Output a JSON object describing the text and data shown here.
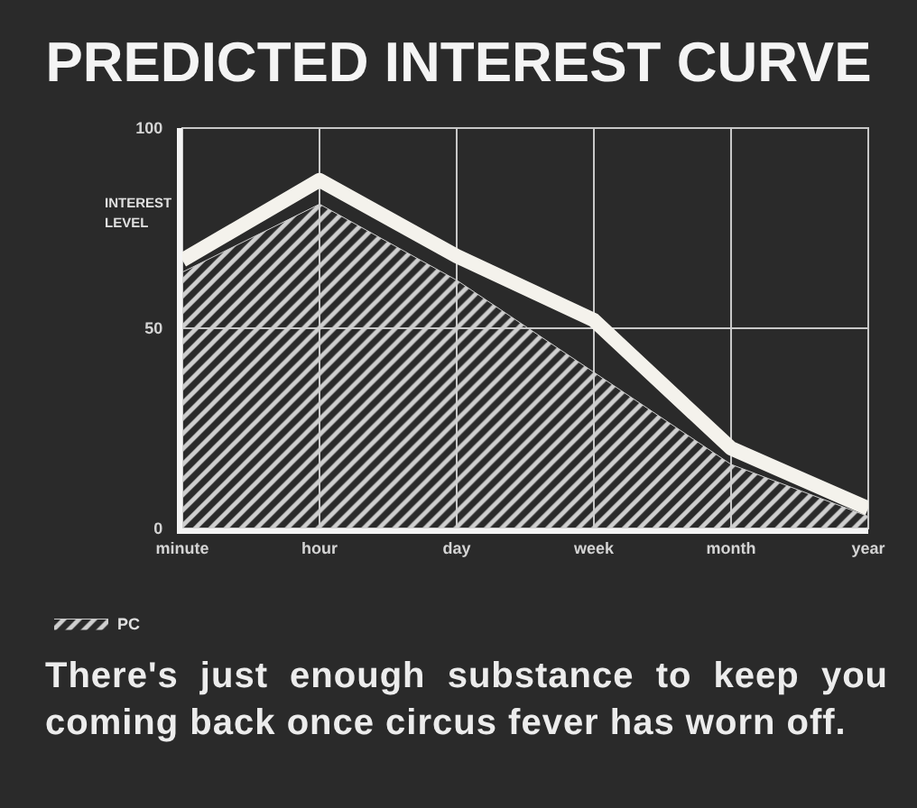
{
  "chart_data": {
    "type": "line",
    "title": "PREDICTED INTEREST CURVE",
    "ylabel": "INTEREST LEVEL",
    "categories": [
      "minute",
      "hour",
      "day",
      "week",
      "month",
      "year"
    ],
    "series": [
      {
        "name": "PC",
        "type": "area",
        "color": "#cfcfcf",
        "values": [
          64,
          81,
          62,
          39,
          16,
          3
        ]
      },
      {
        "color": "#f4f2ec",
        "values": [
          67,
          87,
          68,
          52,
          20,
          5
        ]
      }
    ],
    "ylim": [
      0,
      100
    ],
    "yticks": [
      0,
      50,
      100
    ],
    "grid": true,
    "legend": "bottom",
    "annotations": [
      "There's just enough substance to keep you coming back once circus fever has worn off."
    ]
  }
}
